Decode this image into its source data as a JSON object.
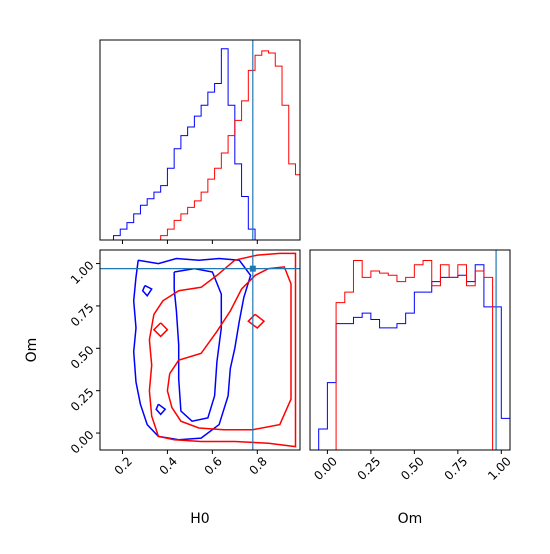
{
  "chart_data": {
    "type": "corner",
    "parameters": [
      "H0",
      "Om"
    ],
    "truth": {
      "H0": 0.78,
      "Om": 0.97
    },
    "colors": {
      "red": "#ff0000",
      "blue": "#0000ff",
      "truth": "#1f77b4"
    },
    "panels": [
      {
        "id": "hist-H0",
        "type": "step-histogram",
        "xlim": [
          0.1,
          0.99
        ],
        "xticks": [
          0.2,
          0.4,
          0.6,
          0.8
        ],
        "xtick_labels_shown": false,
        "bin_edges": [
          0.1,
          0.13,
          0.16,
          0.19,
          0.22,
          0.25,
          0.28,
          0.31,
          0.34,
          0.37,
          0.4,
          0.43,
          0.46,
          0.49,
          0.52,
          0.55,
          0.58,
          0.61,
          0.64,
          0.67,
          0.7,
          0.73,
          0.76,
          0.79,
          0.82,
          0.85,
          0.88,
          0.91,
          0.94,
          0.97,
          0.99
        ],
        "series": [
          {
            "color": "#0000ff",
            "values": [
              0,
              0,
              0.02,
              0.05,
              0.08,
              0.12,
              0.16,
              0.19,
              0.22,
              0.25,
              0.33,
              0.42,
              0.48,
              0.52,
              0.57,
              0.62,
              0.68,
              0.72,
              0.88,
              0.62,
              0.35,
              0.2,
              0.05,
              0,
              0,
              0,
              0,
              0,
              0,
              0
            ]
          },
          {
            "color": "#ff0000",
            "values": [
              0,
              0,
              0,
              0,
              0,
              0,
              0,
              0,
              0,
              0.02,
              0.05,
              0.09,
              0.12,
              0.15,
              0.18,
              0.22,
              0.28,
              0.33,
              0.4,
              0.48,
              0.55,
              0.64,
              0.78,
              0.85,
              0.87,
              0.86,
              0.8,
              0.62,
              0.35,
              0.3
            ]
          }
        ]
      },
      {
        "id": "contour-H0-Om",
        "type": "contour",
        "xlabel": "H0",
        "ylabel": "Om",
        "xlim": [
          0.1,
          0.99
        ],
        "ylim": [
          -0.1,
          1.08
        ],
        "xticks": [
          0.2,
          0.4,
          0.6,
          0.8
        ],
        "xtick_labels": [
          "0.2",
          "0.4",
          "0.6",
          "0.8"
        ],
        "yticks": [
          0.0,
          0.25,
          0.5,
          0.75,
          1.0
        ],
        "ytick_labels": [
          "0.00",
          "0.25",
          "0.50",
          "0.75",
          "1.00"
        ],
        "contours": [
          {
            "color": "#0000ff",
            "level": "outer",
            "points": [
              [
                0.27,
                1.02
              ],
              [
                0.36,
                1.0
              ],
              [
                0.44,
                1.03
              ],
              [
                0.54,
                1.02
              ],
              [
                0.63,
                1.03
              ],
              [
                0.72,
                1.02
              ],
              [
                0.77,
                0.93
              ],
              [
                0.74,
                0.8
              ],
              [
                0.72,
                0.66
              ],
              [
                0.7,
                0.5
              ],
              [
                0.68,
                0.38
              ],
              [
                0.67,
                0.22
              ],
              [
                0.63,
                0.05
              ],
              [
                0.55,
                -0.03
              ],
              [
                0.45,
                -0.04
              ],
              [
                0.36,
                -0.02
              ],
              [
                0.31,
                0.05
              ],
              [
                0.28,
                0.17
              ],
              [
                0.26,
                0.3
              ],
              [
                0.25,
                0.48
              ],
              [
                0.26,
                0.62
              ],
              [
                0.25,
                0.78
              ],
              [
                0.26,
                0.92
              ],
              [
                0.27,
                1.02
              ]
            ]
          },
          {
            "color": "#0000ff",
            "level": "inner",
            "points": [
              [
                0.43,
                0.95
              ],
              [
                0.52,
                0.97
              ],
              [
                0.6,
                0.95
              ],
              [
                0.64,
                0.82
              ],
              [
                0.64,
                0.62
              ],
              [
                0.62,
                0.42
              ],
              [
                0.61,
                0.22
              ],
              [
                0.58,
                0.09
              ],
              [
                0.51,
                0.07
              ],
              [
                0.46,
                0.13
              ],
              [
                0.45,
                0.32
              ],
              [
                0.45,
                0.52
              ],
              [
                0.44,
                0.72
              ],
              [
                0.43,
                0.85
              ],
              [
                0.43,
                0.95
              ]
            ]
          },
          {
            "color": "#0000ff",
            "level": "island",
            "points": [
              [
                0.3,
                0.87
              ],
              [
                0.33,
                0.85
              ],
              [
                0.31,
                0.81
              ],
              [
                0.29,
                0.84
              ],
              [
                0.3,
                0.87
              ]
            ]
          },
          {
            "color": "#0000ff",
            "level": "island",
            "points": [
              [
                0.36,
                0.17
              ],
              [
                0.39,
                0.14
              ],
              [
                0.37,
                0.11
              ],
              [
                0.35,
                0.14
              ],
              [
                0.36,
                0.17
              ]
            ]
          },
          {
            "color": "#ff0000",
            "level": "outer",
            "points": [
              [
                0.34,
                0.7
              ],
              [
                0.38,
                0.78
              ],
              [
                0.45,
                0.84
              ],
              [
                0.55,
                0.86
              ],
              [
                0.62,
                0.93
              ],
              [
                0.7,
                1.02
              ],
              [
                0.8,
                1.05
              ],
              [
                0.9,
                1.06
              ],
              [
                0.97,
                1.06
              ],
              [
                0.97,
                -0.08
              ],
              [
                0.85,
                -0.06
              ],
              [
                0.7,
                -0.05
              ],
              [
                0.55,
                -0.05
              ],
              [
                0.43,
                -0.04
              ],
              [
                0.36,
                -0.02
              ],
              [
                0.33,
                0.1
              ],
              [
                0.32,
                0.25
              ],
              [
                0.33,
                0.4
              ],
              [
                0.32,
                0.55
              ],
              [
                0.34,
                0.7
              ]
            ]
          },
          {
            "color": "#ff0000",
            "level": "inner",
            "points": [
              [
                0.41,
                0.35
              ],
              [
                0.45,
                0.43
              ],
              [
                0.55,
                0.47
              ],
              [
                0.62,
                0.6
              ],
              [
                0.68,
                0.72
              ],
              [
                0.73,
                0.85
              ],
              [
                0.79,
                0.93
              ],
              [
                0.85,
                0.97
              ],
              [
                0.92,
                0.98
              ],
              [
                0.95,
                0.88
              ],
              [
                0.95,
                0.7
              ],
              [
                0.95,
                0.45
              ],
              [
                0.95,
                0.2
              ],
              [
                0.9,
                0.05
              ],
              [
                0.78,
                0.02
              ],
              [
                0.65,
                0.02
              ],
              [
                0.54,
                0.03
              ],
              [
                0.46,
                0.07
              ],
              [
                0.42,
                0.15
              ],
              [
                0.4,
                0.25
              ],
              [
                0.41,
                0.35
              ]
            ]
          },
          {
            "color": "#ff0000",
            "level": "island",
            "points": [
              [
                0.37,
                0.65
              ],
              [
                0.4,
                0.61
              ],
              [
                0.37,
                0.57
              ],
              [
                0.34,
                0.61
              ],
              [
                0.37,
                0.65
              ]
            ]
          },
          {
            "color": "#ff0000",
            "level": "island",
            "points": [
              [
                0.79,
                0.7
              ],
              [
                0.83,
                0.66
              ],
              [
                0.8,
                0.62
              ],
              [
                0.76,
                0.66
              ],
              [
                0.79,
                0.7
              ]
            ]
          }
        ]
      },
      {
        "id": "hist-Om",
        "type": "step-histogram",
        "xlabel": "Om",
        "xlim": [
          -0.1,
          1.05
        ],
        "xticks": [
          0.0,
          0.25,
          0.5,
          0.75,
          1.0
        ],
        "xtick_labels": [
          "0.00",
          "0.25",
          "0.50",
          "0.75",
          "1.00"
        ],
        "bin_edges": [
          -0.1,
          -0.05,
          0.0,
          0.05,
          0.1,
          0.15,
          0.2,
          0.25,
          0.3,
          0.35,
          0.4,
          0.45,
          0.5,
          0.55,
          0.6,
          0.65,
          0.7,
          0.75,
          0.8,
          0.85,
          0.9,
          0.95,
          1.0,
          1.05
        ],
        "series": [
          {
            "color": "#0000ff",
            "values": [
              0,
              0.1,
              0.32,
              0.6,
              0.6,
              0.63,
              0.65,
              0.62,
              0.58,
              0.58,
              0.6,
              0.65,
              0.75,
              0.75,
              0.8,
              0.82,
              0.82,
              0.83,
              0.8,
              0.88,
              0.68,
              0.68,
              0.15
            ]
          },
          {
            "color": "#ff0000",
            "values": [
              0,
              0,
              0.0,
              0.7,
              0.75,
              0.9,
              0.82,
              0.85,
              0.84,
              0.83,
              0.8,
              0.82,
              0.88,
              0.9,
              0.78,
              0.88,
              0.82,
              0.88,
              0.78,
              0.85,
              0.82,
              0.0,
              0.0
            ]
          }
        ]
      }
    ]
  }
}
